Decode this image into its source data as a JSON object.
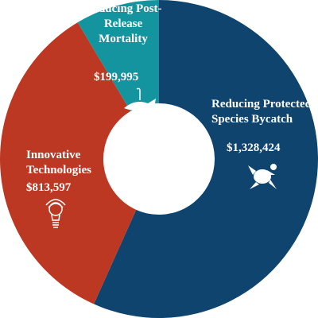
{
  "chart_data": {
    "type": "donut",
    "categories": [
      "Reducing Protected Species Bycatch",
      "Innovative Technologies",
      "Reducing Post-Release Mortality"
    ],
    "values": [
      1328424,
      813597,
      199995
    ],
    "value_labels": [
      "$1,328,424",
      "$813,597",
      "$199,995"
    ],
    "colors": [
      "#0e446e",
      "#bd3823",
      "#14949e"
    ]
  }
}
